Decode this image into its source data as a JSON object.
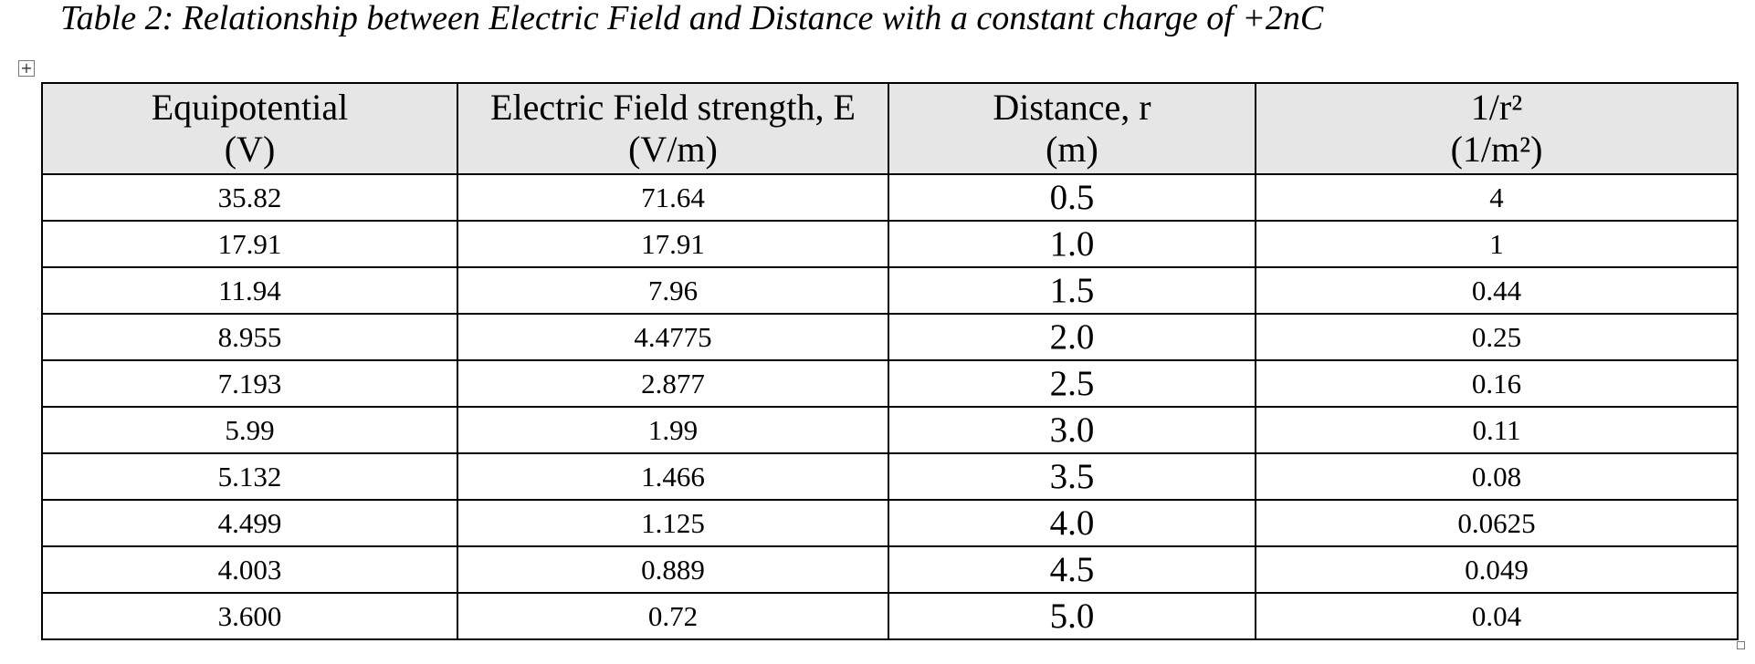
{
  "title": "Table 2: Relationship between Electric Field and Distance with a constant charge of +2nC",
  "table": {
    "header": [
      [
        "Equipotential",
        "(V)"
      ],
      [
        "Electric Field strength, E",
        "(V/m)"
      ],
      [
        "Distance, r",
        "(m)"
      ],
      [
        "1/r²",
        "(1/m²)"
      ]
    ],
    "rows": [
      [
        "35.82",
        "71.64",
        "0.5",
        "4"
      ],
      [
        "17.91",
        "17.91",
        "1.0",
        "1"
      ],
      [
        "11.94",
        "7.96",
        "1.5",
        "0.44"
      ],
      [
        "8.955",
        "4.4775",
        "2.0",
        "0.25"
      ],
      [
        "7.193",
        "2.877",
        "2.5",
        "0.16"
      ],
      [
        "5.99",
        "1.99",
        "3.0",
        "0.11"
      ],
      [
        "5.132",
        "1.466",
        "3.5",
        "0.08"
      ],
      [
        "4.499",
        "1.125",
        "4.0",
        "0.0625"
      ],
      [
        "4.003",
        "0.889",
        "4.5",
        "0.049"
      ],
      [
        "3.600",
        "0.72",
        "5.0",
        "0.04"
      ]
    ]
  }
}
